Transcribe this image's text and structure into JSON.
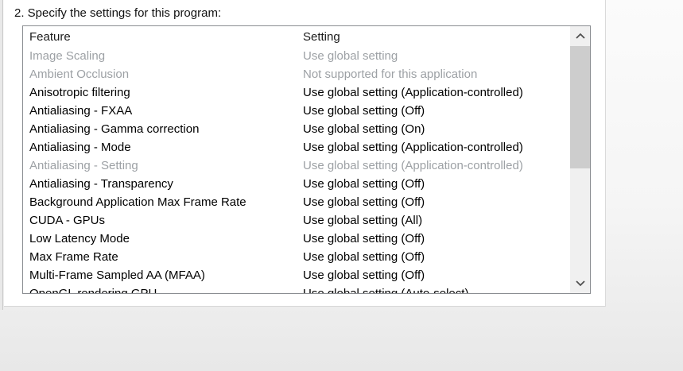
{
  "section": {
    "title": "2. Specify the settings for this program:"
  },
  "table": {
    "columns": [
      "Feature",
      "Setting"
    ],
    "rows": [
      {
        "feature": "Image Scaling",
        "setting": "Use global setting",
        "disabled": true
      },
      {
        "feature": "Ambient Occlusion",
        "setting": "Not supported for this application",
        "disabled": true
      },
      {
        "feature": "Anisotropic filtering",
        "setting": "Use global setting (Application-controlled)",
        "disabled": false
      },
      {
        "feature": "Antialiasing - FXAA",
        "setting": "Use global setting (Off)",
        "disabled": false
      },
      {
        "feature": "Antialiasing - Gamma correction",
        "setting": "Use global setting (On)",
        "disabled": false
      },
      {
        "feature": "Antialiasing - Mode",
        "setting": "Use global setting (Application-controlled)",
        "disabled": false
      },
      {
        "feature": "Antialiasing - Setting",
        "setting": "Use global setting (Application-controlled)",
        "disabled": true
      },
      {
        "feature": "Antialiasing - Transparency",
        "setting": "Use global setting (Off)",
        "disabled": false
      },
      {
        "feature": "Background Application Max Frame Rate",
        "setting": "Use global setting (Off)",
        "disabled": false
      },
      {
        "feature": "CUDA - GPUs",
        "setting": "Use global setting (All)",
        "disabled": false
      },
      {
        "feature": "Low Latency Mode",
        "setting": "Use global setting (Off)",
        "disabled": false
      },
      {
        "feature": "Max Frame Rate",
        "setting": "Use global setting (Off)",
        "disabled": false
      },
      {
        "feature": "Multi-Frame Sampled AA (MFAA)",
        "setting": "Use global setting (Off)",
        "disabled": false
      },
      {
        "feature": "OpenGL rendering GPU",
        "setting": "Use global setting (Auto-select)",
        "disabled": false
      }
    ]
  },
  "scrollbar": {
    "up_icon": "chevron-up-icon",
    "down_icon": "chevron-down-icon"
  },
  "colors": {
    "text": "#000000",
    "disabled_text": "#9da1a5",
    "listbox_border": "#8a8d91",
    "scrollbar_track": "#f0f0f0",
    "scrollbar_thumb": "#cdcdcd",
    "scrollbar_arrow": "#505050"
  }
}
